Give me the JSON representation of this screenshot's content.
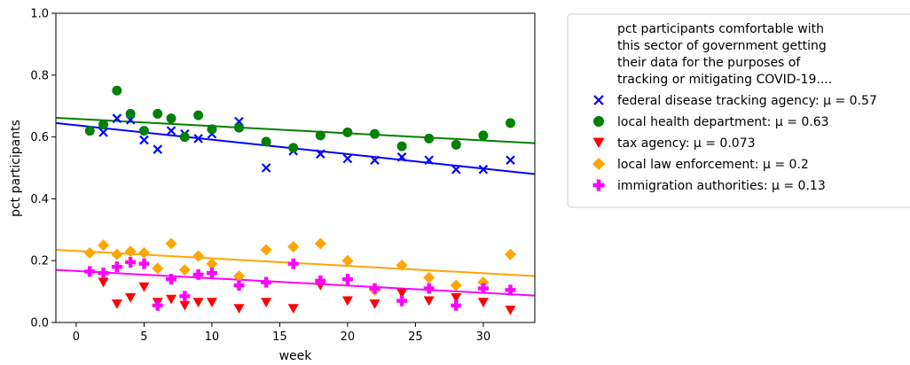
{
  "chart_data": {
    "type": "scatter",
    "xlabel": "week",
    "ylabel": "pct participants",
    "xlim": [
      -1.5,
      33.8
    ],
    "ylim": [
      0.0,
      1.0
    ],
    "x_ticks": [
      0,
      5,
      10,
      15,
      20,
      25,
      30
    ],
    "y_ticks": [
      0.0,
      0.2,
      0.4,
      0.6,
      0.8,
      1.0
    ],
    "x_tick_labels": [
      "0",
      "5",
      "10",
      "15",
      "20",
      "25",
      "30"
    ],
    "y_tick_labels": [
      "0.0",
      "0.2",
      "0.4",
      "0.6",
      "0.8",
      "1.0"
    ],
    "grid": false,
    "legend_placement": "outside upper right",
    "legend_title_lines": [
      "pct participants comfortable with",
      "this sector of government getting",
      "their data for the purposes of",
      "tracking or mitigating COVID-19...."
    ],
    "series": [
      {
        "name": "federal disease tracking agency: μ = 0.57",
        "marker": "x",
        "color": "#0000ff",
        "x": [
          2,
          3,
          4,
          5,
          6,
          7,
          8,
          9,
          10,
          12,
          14,
          16,
          18,
          20,
          22,
          24,
          26,
          28,
          30,
          32
        ],
        "y": [
          0.615,
          0.66,
          0.655,
          0.59,
          0.56,
          0.62,
          0.61,
          0.595,
          0.61,
          0.65,
          0.5,
          0.555,
          0.545,
          0.53,
          0.525,
          0.535,
          0.525,
          0.495,
          0.495,
          0.525
        ],
        "trend": [
          0.645,
          0.48
        ]
      },
      {
        "name": "local health department: μ = 0.63",
        "marker": "circle",
        "color": "#008000",
        "x": [
          1,
          2,
          3,
          4,
          5,
          6,
          7,
          8,
          9,
          10,
          12,
          14,
          16,
          18,
          20,
          22,
          24,
          26,
          28,
          30,
          32
        ],
        "y": [
          0.62,
          0.64,
          0.75,
          0.675,
          0.62,
          0.675,
          0.66,
          0.6,
          0.67,
          0.625,
          0.63,
          0.585,
          0.565,
          0.605,
          0.615,
          0.61,
          0.57,
          0.595,
          0.575,
          0.605,
          0.645
        ],
        "trend": [
          0.662,
          0.58
        ]
      },
      {
        "name": "tax agency: μ = 0.073",
        "marker": "triangle-down",
        "color": "#ff0000",
        "x": [
          2,
          3,
          4,
          5,
          6,
          7,
          8,
          9,
          10,
          12,
          14,
          16,
          18,
          20,
          22,
          24,
          26,
          28,
          30,
          32
        ],
        "y": [
          0.13,
          0.06,
          0.08,
          0.115,
          0.065,
          0.075,
          0.055,
          0.065,
          0.065,
          0.045,
          0.065,
          0.045,
          0.12,
          0.07,
          0.06,
          0.095,
          0.07,
          0.08,
          0.065,
          0.04
        ]
      },
      {
        "name": "local law enforcement: μ = 0.2",
        "marker": "diamond",
        "color": "#ffa500",
        "x": [
          1,
          2,
          3,
          4,
          5,
          6,
          7,
          8,
          9,
          10,
          12,
          14,
          16,
          18,
          20,
          22,
          24,
          26,
          28,
          30,
          32
        ],
        "y": [
          0.225,
          0.25,
          0.22,
          0.23,
          0.225,
          0.175,
          0.255,
          0.17,
          0.215,
          0.19,
          0.15,
          0.235,
          0.245,
          0.255,
          0.2,
          0.105,
          0.185,
          0.145,
          0.12,
          0.13,
          0.22
        ],
        "trend": [
          0.235,
          0.15
        ]
      },
      {
        "name": "immigration authorities: μ = 0.13",
        "marker": "plus",
        "color": "#ff00ff",
        "x": [
          1,
          2,
          3,
          4,
          5,
          6,
          7,
          8,
          9,
          10,
          12,
          14,
          16,
          18,
          20,
          22,
          24,
          26,
          28,
          30,
          32
        ],
        "y": [
          0.165,
          0.16,
          0.18,
          0.195,
          0.19,
          0.055,
          0.14,
          0.085,
          0.155,
          0.16,
          0.12,
          0.13,
          0.19,
          0.135,
          0.14,
          0.11,
          0.07,
          0.11,
          0.055,
          0.11,
          0.105
        ],
        "trend": [
          0.17,
          0.087
        ]
      }
    ]
  }
}
